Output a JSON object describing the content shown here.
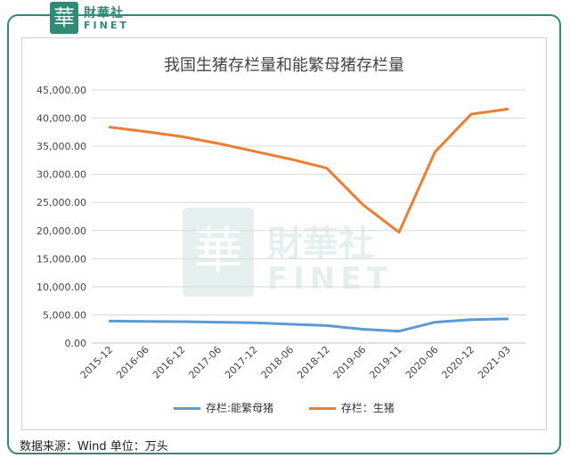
{
  "logo": {
    "mark": "華",
    "cn": "財華社",
    "en": "FINET"
  },
  "watermark": {
    "mark": "華",
    "cn": "財華社",
    "en": "FINET"
  },
  "source_note": "数据来源：Wind 单位：万头",
  "colors": {
    "frame": "#2f8a78",
    "sow": "#5b9bd5",
    "hog": "#ed7d31",
    "grid": "#d9d9d9"
  },
  "chart_data": {
    "type": "line",
    "title": "我国生猪存栏量和能繁母猪存栏量",
    "categories": [
      "2015-12",
      "2016-06",
      "2016-12",
      "2017-06",
      "2017-12",
      "2018-06",
      "2018-12",
      "2019-06",
      "2019-11",
      "2020-06",
      "2020-12",
      "2021-03"
    ],
    "y_ticks": [
      "0.00",
      "5,000.00",
      "10,000.00",
      "15,000.00",
      "20,000.00",
      "25,000.00",
      "30,000.00",
      "35,000.00",
      "40,000.00",
      "45,000.00"
    ],
    "ylim": [
      0,
      45000
    ],
    "grid": true,
    "legend_position": "bottom",
    "series": [
      {
        "name": "存栏:能繁母猪",
        "color": "#5b9bd5",
        "values": [
          3900,
          3850,
          3800,
          3700,
          3600,
          3350,
          3100,
          2450,
          2100,
          3700,
          4160,
          4300
        ]
      },
      {
        "name": "存栏：生猪",
        "color": "#ed7d31",
        "values": [
          38400,
          37600,
          36700,
          35500,
          34100,
          32700,
          31100,
          24600,
          19700,
          34000,
          40700,
          41600
        ]
      }
    ]
  }
}
